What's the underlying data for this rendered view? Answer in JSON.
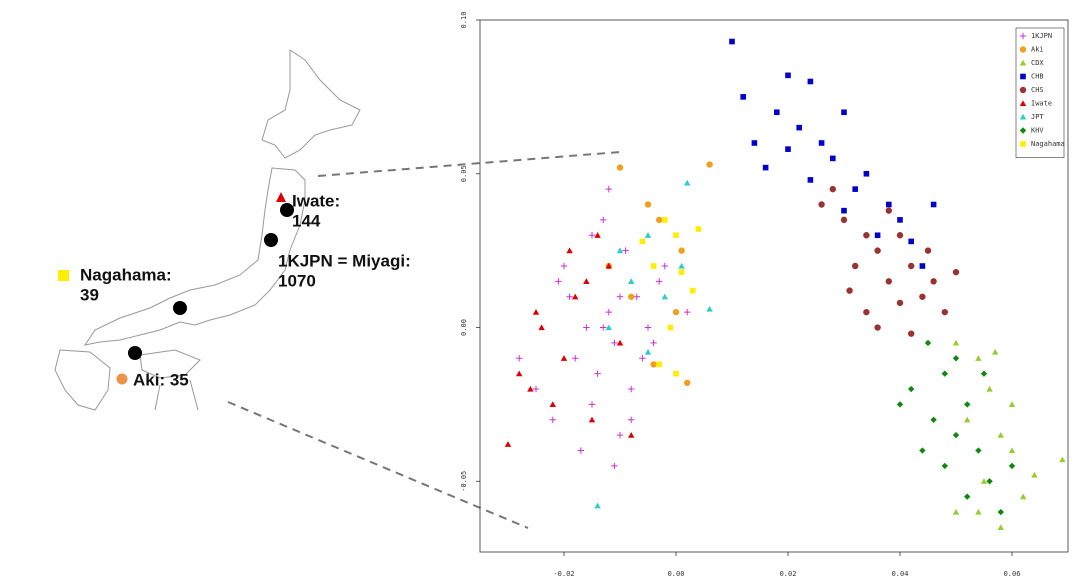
{
  "map": {
    "labels": [
      {
        "lines": [
          "Iwate:",
          "144"
        ]
      },
      {
        "lines": [
          "1KJPN = Miyagi:",
          "1070"
        ]
      },
      {
        "lines": [
          "Nagahama:",
          "39"
        ]
      },
      {
        "lines": [
          "Aki: 35"
        ]
      }
    ]
  },
  "chart_data": {
    "type": "scatter",
    "xlim": [
      -0.035,
      0.07
    ],
    "ylim": [
      -0.073,
      0.1
    ],
    "xticks": [
      -0.02,
      {
        "value": 0,
        "label": "0.00"
      },
      0.02,
      0.04,
      0.06
    ],
    "yticks": [
      -0.05,
      {
        "value": 0,
        "label": "0.00"
      },
      0.05,
      {
        "value": 0.1,
        "label": "0.10"
      }
    ],
    "legend": "upper right",
    "series": [
      {
        "name": "1KJPN",
        "color": "#cc33cc",
        "marker": "plus",
        "x": [
          -0.02,
          -0.015,
          -0.01,
          -0.005,
          -0.018,
          -0.012,
          -0.008,
          -0.003,
          -0.022,
          -0.014,
          -0.009,
          -0.016,
          -0.011,
          -0.006,
          -0.025,
          -0.013,
          -0.007,
          -0.019,
          -0.01,
          -0.004,
          -0.017,
          -0.012,
          -0.002,
          -0.021,
          -0.015,
          -0.008,
          -0.028,
          -0.013,
          0.002,
          -0.011
        ],
        "values": [
          0.02,
          0.03,
          0.01,
          0.0,
          -0.01,
          0.005,
          -0.02,
          0.015,
          -0.03,
          -0.015,
          0.025,
          0.0,
          -0.005,
          -0.01,
          -0.02,
          0.035,
          0.01,
          0.01,
          -0.035,
          -0.005,
          -0.04,
          0.045,
          0.02,
          0.015,
          -0.025,
          -0.03,
          -0.01,
          0.0,
          0.005,
          -0.045
        ]
      },
      {
        "name": "Aki",
        "color": "#f0a020",
        "marker": "circle",
        "x": [
          -0.01,
          0.006,
          -0.005,
          -0.003,
          0.001,
          -0.008,
          0.002,
          -0.004,
          -0.012,
          0.0
        ],
        "values": [
          0.052,
          0.053,
          0.04,
          0.035,
          0.025,
          0.01,
          -0.018,
          -0.012,
          0.02,
          0.005
        ]
      },
      {
        "name": "CDX",
        "color": "#99cc33",
        "marker": "triangle",
        "x": [
          0.05,
          0.054,
          0.056,
          0.052,
          0.058,
          0.06,
          0.055,
          0.062,
          0.058,
          0.05,
          0.069,
          0.06,
          0.064,
          0.054,
          0.057
        ],
        "values": [
          -0.005,
          -0.01,
          -0.02,
          -0.03,
          -0.035,
          -0.04,
          -0.05,
          -0.055,
          -0.065,
          -0.06,
          -0.043,
          -0.025,
          -0.048,
          -0.06,
          -0.008
        ]
      },
      {
        "name": "CHB",
        "color": "#0000cc",
        "marker": "square",
        "x": [
          0.01,
          0.02,
          0.024,
          0.018,
          0.012,
          0.022,
          0.026,
          0.02,
          0.03,
          0.028,
          0.016,
          0.034,
          0.032,
          0.038,
          0.024,
          0.04,
          0.036,
          0.042,
          0.046,
          0.03,
          0.014,
          0.044
        ],
        "values": [
          0.093,
          0.082,
          0.08,
          0.07,
          0.075,
          0.065,
          0.06,
          0.058,
          0.07,
          0.055,
          0.052,
          0.05,
          0.045,
          0.04,
          0.048,
          0.035,
          0.03,
          0.028,
          0.04,
          0.038,
          0.06,
          0.02
        ]
      },
      {
        "name": "CHS",
        "color": "#993333",
        "marker": "circle",
        "x": [
          0.026,
          0.03,
          0.028,
          0.034,
          0.032,
          0.036,
          0.038,
          0.04,
          0.042,
          0.044,
          0.046,
          0.048,
          0.04,
          0.034,
          0.036,
          0.05,
          0.045,
          0.038,
          0.031,
          0.042
        ],
        "values": [
          0.04,
          0.035,
          0.045,
          0.03,
          0.02,
          0.025,
          0.015,
          0.03,
          0.02,
          0.01,
          0.015,
          0.005,
          0.008,
          0.005,
          0.0,
          0.018,
          0.025,
          0.038,
          0.012,
          -0.002
        ]
      },
      {
        "name": "Iwate",
        "color": "#dd0000",
        "marker": "triangle",
        "x": [
          -0.028,
          -0.025,
          -0.022,
          -0.018,
          -0.015,
          -0.02,
          -0.012,
          -0.024,
          -0.016,
          -0.008,
          -0.026,
          -0.019,
          -0.01,
          -0.03,
          -0.014
        ],
        "values": [
          -0.015,
          0.005,
          -0.025,
          0.01,
          -0.03,
          -0.01,
          0.02,
          0.0,
          0.015,
          -0.035,
          -0.02,
          0.025,
          -0.005,
          -0.038,
          0.03
        ]
      },
      {
        "name": "JPT",
        "color": "#33cccc",
        "marker": "triangle",
        "x": [
          0.002,
          -0.005,
          -0.01,
          -0.008,
          -0.002,
          0.006,
          -0.012,
          -0.005,
          -0.014,
          0.001
        ],
        "values": [
          0.047,
          0.03,
          0.025,
          0.015,
          0.01,
          0.006,
          0.0,
          -0.008,
          -0.058,
          0.02
        ]
      },
      {
        "name": "KHV",
        "color": "#118811",
        "marker": "diamond",
        "x": [
          0.045,
          0.048,
          0.05,
          0.042,
          0.052,
          0.046,
          0.05,
          0.054,
          0.048,
          0.056,
          0.052,
          0.058,
          0.044,
          0.055,
          0.04,
          0.06
        ],
        "values": [
          -0.005,
          -0.015,
          -0.01,
          -0.02,
          -0.025,
          -0.03,
          -0.035,
          -0.04,
          -0.045,
          -0.05,
          -0.055,
          -0.06,
          -0.04,
          -0.015,
          -0.025,
          -0.045
        ]
      },
      {
        "name": "Nagahama",
        "color": "#ffee00",
        "marker": "square",
        "x": [
          -0.002,
          0.0,
          -0.004,
          0.003,
          -0.001,
          -0.003,
          0.001,
          -0.006,
          0.004,
          0.0
        ],
        "values": [
          0.035,
          0.03,
          0.02,
          0.012,
          0.0,
          -0.012,
          0.018,
          0.028,
          0.032,
          -0.015
        ]
      }
    ]
  }
}
